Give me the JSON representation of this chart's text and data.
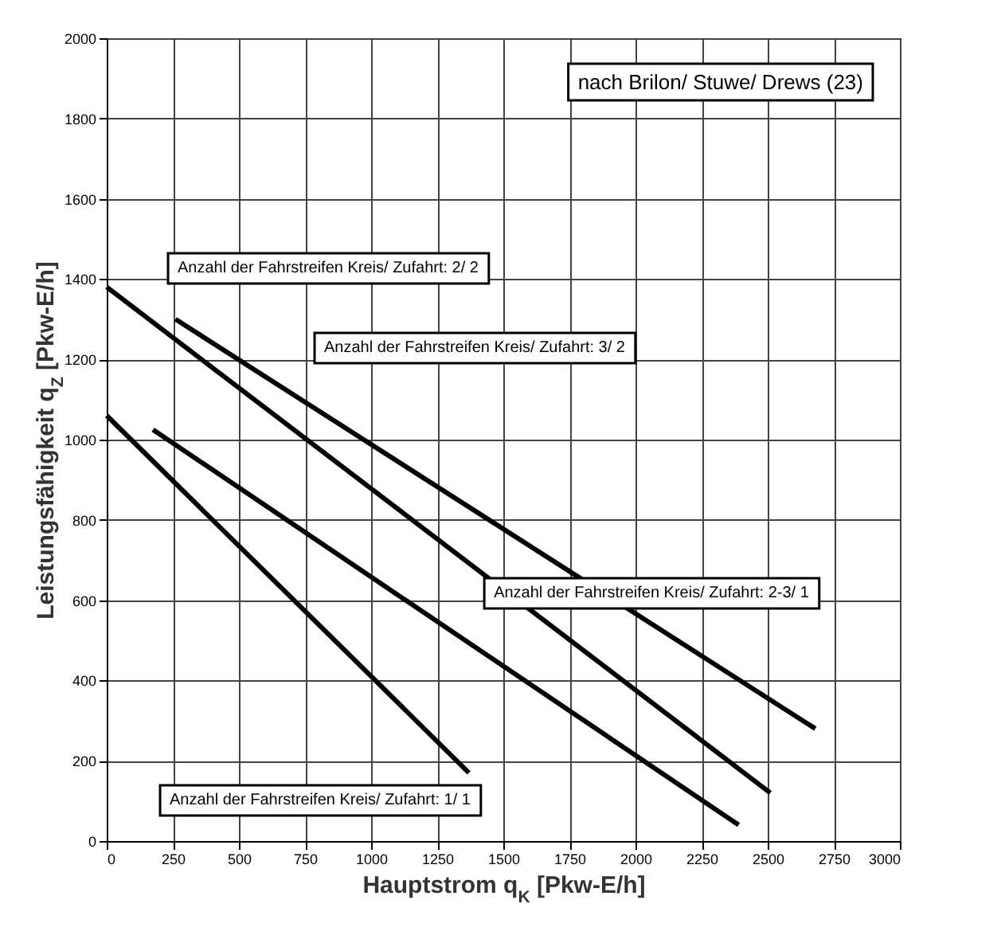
{
  "chart_data": {
    "type": "line",
    "xlabel": "Hauptstrom q$_{K}$ [Pkw-E/h]",
    "ylabel": "Leistungsfähigkeit q$_{Z}$ [Pkw-E/h]",
    "xlim": [
      0,
      3000
    ],
    "ylim": [
      0,
      2000
    ],
    "xticks": [
      0,
      250,
      500,
      750,
      1000,
      1250,
      1500,
      1750,
      2000,
      2250,
      2500,
      2750,
      3000
    ],
    "yticks": [
      0,
      200,
      400,
      600,
      800,
      1000,
      1200,
      1400,
      1600,
      1800,
      2000
    ],
    "grid": true,
    "marker": "none",
    "line_style": "solid",
    "series": [
      {
        "name": "Anzahl der Fahrstreifen Kreis/ Zufahrt: 1/ 1",
        "color": "#000000",
        "x": [
          0,
          1370
        ],
        "values": [
          1060,
          170
        ]
      },
      {
        "name": "Anzahl der Fahrstreifen Kreis/ Zufahrt: 2-3/ 1",
        "color": "#000000",
        "x": [
          175,
          2390
        ],
        "values": [
          1025,
          40
        ]
      },
      {
        "name": "Anzahl der Fahrstreifen Kreis/ Zufahrt: 2/ 2",
        "color": "#000000",
        "x": [
          0,
          2510
        ],
        "values": [
          1380,
          120
        ]
      },
      {
        "name": "Anzahl der Fahrstreifen Kreis/ Zufahrt: 3/ 2",
        "color": "#000000",
        "x": [
          260,
          2680
        ],
        "values": [
          1300,
          280
        ]
      }
    ],
    "annotations": [
      "nach Brilon/ Stuwe/ Drews (23)"
    ]
  }
}
